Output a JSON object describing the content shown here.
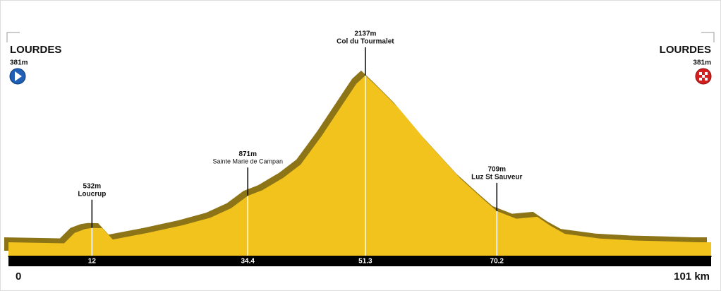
{
  "chart_data": {
    "type": "area",
    "x": [
      0,
      8,
      9.5,
      11,
      12,
      13.5,
      15,
      20,
      25,
      29,
      32,
      34.4,
      36.5,
      39.5,
      42,
      45,
      48,
      50,
      51.3,
      53,
      56,
      60,
      65,
      68,
      70.2,
      73,
      76,
      78,
      80,
      85,
      90,
      95,
      99,
      101
    ],
    "values": [
      381,
      370,
      480,
      520,
      532,
      530,
      410,
      480,
      560,
      640,
      740,
      871,
      930,
      1060,
      1200,
      1500,
      1830,
      2050,
      2137,
      2020,
      1800,
      1450,
      1050,
      850,
      709,
      630,
      650,
      550,
      470,
      420,
      400,
      390,
      381,
      381
    ],
    "color": "#f2c31c",
    "shadow_color": "#8c7417",
    "xlim": [
      0,
      101
    ],
    "ylim": [
      240,
      2300
    ],
    "xticks": [
      0,
      12,
      34.4,
      51.3,
      70.2,
      {
        "value": 101,
        "label": "101 km"
      }
    ],
    "start": {
      "name": "LOURDES",
      "elevation": 381,
      "elevation_label": "381m"
    },
    "finish": {
      "name": "LOURDES",
      "elevation": 381,
      "elevation_label": "381m"
    },
    "climbs": [
      {
        "name": "Loucrup",
        "km": 12,
        "elevation": 532,
        "elevation_label": "532m"
      },
      {
        "name": "Sainte Marie de Campan",
        "km": 34.4,
        "elevation": 871,
        "elevation_label": "871m"
      },
      {
        "name": "Col du Tourmalet",
        "km": 51.3,
        "elevation": 2137,
        "elevation_label": "2137m"
      },
      {
        "name": "Luz St Sauveur",
        "km": 70.2,
        "elevation": 709,
        "elevation_label": "709m"
      }
    ]
  }
}
